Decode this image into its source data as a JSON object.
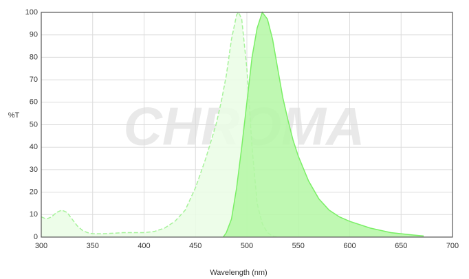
{
  "chart_data": {
    "type": "area",
    "xlabel": "Wavelength (nm)",
    "ylabel": "%T",
    "watermark": "CHROMA",
    "xlim": [
      300,
      700
    ],
    "xticks": [
      300,
      350,
      400,
      450,
      500,
      550,
      600,
      650,
      700
    ],
    "ylim": [
      0,
      100
    ],
    "yticks": [
      0,
      10,
      20,
      30,
      40,
      50,
      60,
      70,
      80,
      90,
      100
    ],
    "grid": true,
    "series": [
      {
        "color": "#a6f29a",
        "fill": "#eafde5",
        "dashed": true,
        "x": [
          300,
          305,
          310,
          315,
          320,
          325,
          330,
          335,
          340,
          345,
          350,
          360,
          370,
          380,
          390,
          400,
          410,
          420,
          430,
          440,
          450,
          460,
          470,
          475,
          480,
          485,
          490,
          492,
          495,
          500,
          505,
          510,
          515,
          520,
          525,
          530
        ],
        "values": [
          9,
          8,
          9,
          11,
          12,
          11,
          8,
          5,
          3,
          2,
          1.5,
          1.5,
          1.7,
          2,
          2,
          2,
          2.5,
          4,
          7,
          12,
          22,
          35,
          50,
          60,
          72,
          88,
          99,
          100,
          97,
          75,
          40,
          15,
          6,
          2,
          0.5,
          0
        ]
      },
      {
        "color": "#7aef65",
        "fill": "#b4f7a4",
        "dashed": false,
        "x": [
          477,
          480,
          485,
          490,
          495,
          500,
          505,
          510,
          515,
          520,
          525,
          530,
          535,
          540,
          545,
          550,
          560,
          570,
          580,
          590,
          600,
          620,
          640,
          660,
          672
        ],
        "values": [
          0,
          2,
          8,
          22,
          40,
          60,
          80,
          93,
          100,
          97,
          88,
          75,
          62,
          52,
          43,
          36,
          25,
          17,
          12,
          9,
          7,
          4,
          2,
          1,
          0.5
        ]
      }
    ]
  }
}
